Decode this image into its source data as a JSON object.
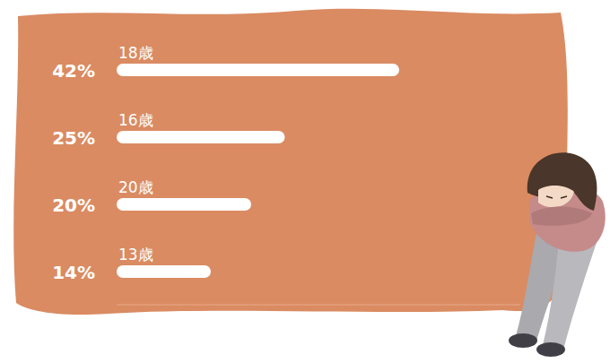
{
  "chart_data": {
    "type": "bar",
    "orientation": "horizontal",
    "categories": [
      "18歳",
      "16歳",
      "20歳",
      "13歳"
    ],
    "values": [
      42,
      25,
      20,
      14
    ],
    "value_labels": [
      "42%",
      "25%",
      "20%",
      "14%"
    ],
    "data_labels": true,
    "color": "#ffffff",
    "xlim": [
      0,
      60
    ],
    "tick_labels": "y",
    "grid": false
  }
}
